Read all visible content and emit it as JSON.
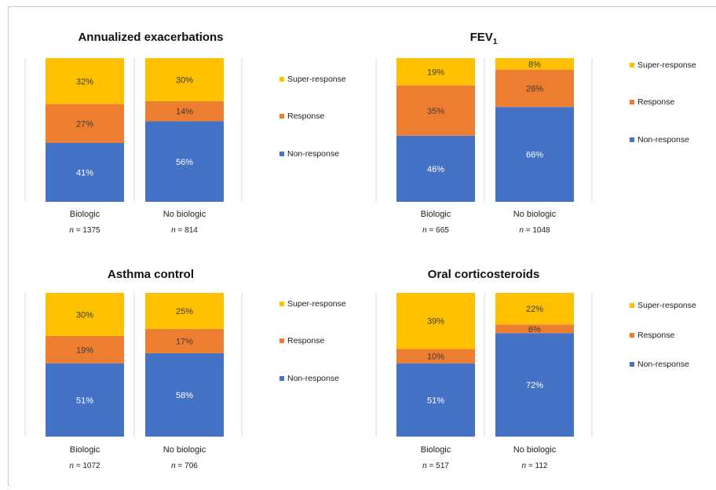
{
  "colors": {
    "super": "#ffc000",
    "response": "#ed7d31",
    "non": "#4472c4",
    "divider": "#d9d9d9"
  },
  "chart_data": [
    {
      "type": "bar",
      "stacked": true,
      "title": "Annualized exacerbations",
      "categories": [
        "Biologic",
        "No biologic"
      ],
      "n_labels": [
        "n = 1375",
        "n = 814"
      ],
      "series": [
        {
          "name": "Non-response",
          "values": [
            41,
            56
          ],
          "labels": [
            "41%",
            "56%"
          ]
        },
        {
          "name": "Response",
          "values": [
            27,
            14
          ],
          "labels": [
            "27%",
            "14%"
          ]
        },
        {
          "name": "Super-response",
          "values": [
            32,
            30
          ],
          "labels": [
            "32%",
            "30%"
          ]
        }
      ],
      "legend_order": [
        "Super-response",
        "Response",
        "Non-response"
      ],
      "legend": "right",
      "ylim": [
        0,
        100
      ]
    },
    {
      "type": "bar",
      "stacked": true,
      "title": "FEV1",
      "title_main": "FEV",
      "title_sub": "1",
      "categories": [
        "Biologic",
        "No biologic"
      ],
      "n_labels": [
        "n = 665",
        "n = 1048"
      ],
      "series": [
        {
          "name": "Non-response",
          "values": [
            46,
            66
          ],
          "labels": [
            "46%",
            "66%"
          ]
        },
        {
          "name": "Response",
          "values": [
            35,
            26
          ],
          "labels": [
            "35%",
            "26%"
          ]
        },
        {
          "name": "Super-response",
          "values": [
            19,
            8
          ],
          "labels": [
            "19%",
            "8%"
          ]
        }
      ],
      "legend_order": [
        "Super-response",
        "Response",
        "Non-response"
      ],
      "legend": "right",
      "ylim": [
        0,
        100
      ]
    },
    {
      "type": "bar",
      "stacked": true,
      "title": "Asthma control",
      "categories": [
        "Biologic",
        "No biologic"
      ],
      "n_labels": [
        "n = 1072",
        "n = 706"
      ],
      "series": [
        {
          "name": "Non-response",
          "values": [
            51,
            58
          ],
          "labels": [
            "51%",
            "58%"
          ]
        },
        {
          "name": "Response",
          "values": [
            19,
            17
          ],
          "labels": [
            "19%",
            "17%"
          ]
        },
        {
          "name": "Super-response",
          "values": [
            30,
            25
          ],
          "labels": [
            "30%",
            "25%"
          ]
        }
      ],
      "legend_order": [
        "Super-response",
        "Response",
        "Non-response"
      ],
      "legend": "right",
      "ylim": [
        0,
        100
      ]
    },
    {
      "type": "bar",
      "stacked": true,
      "title": "Oral corticosteroids",
      "categories": [
        "Biologic",
        "No biologic"
      ],
      "n_labels": [
        "n = 517",
        "n = 112"
      ],
      "series": [
        {
          "name": "Non-response",
          "values": [
            51,
            72
          ],
          "labels": [
            "51%",
            "72%"
          ]
        },
        {
          "name": "Response",
          "values": [
            10,
            6
          ],
          "labels": [
            "10%",
            "6%"
          ]
        },
        {
          "name": "Super-response",
          "values": [
            39,
            22
          ],
          "labels": [
            "39%",
            "22%"
          ]
        }
      ],
      "legend_order": [
        "Super-response",
        "Response",
        "Non-response"
      ],
      "legend": "right",
      "ylim": [
        0,
        100
      ]
    }
  ]
}
